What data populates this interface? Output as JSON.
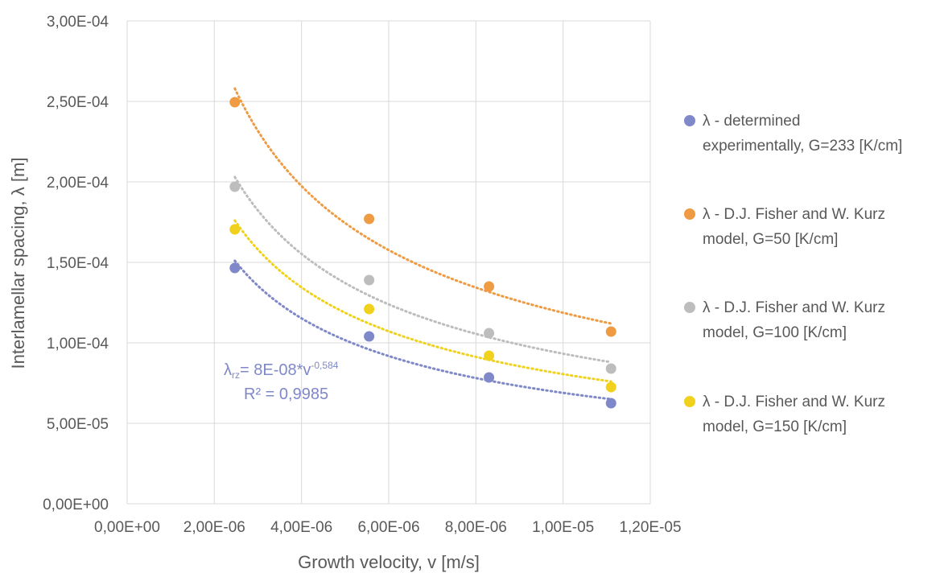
{
  "chart_data": {
    "type": "scatter",
    "xlabel": "Growth velocity, v [m/s]",
    "ylabel": "Interlamellar spacing, λ [m]",
    "xlim": [
      0,
      1.2e-05
    ],
    "ylim": [
      0,
      0.0003
    ],
    "x_ticks": [
      "0,00E+00",
      "2,00E-06",
      "4,00E-06",
      "6,00E-06",
      "8,00E-06",
      "1,00E-05",
      "1,20E-05"
    ],
    "y_ticks": [
      "0,00E+00",
      "5,00E-05",
      "1,00E-04",
      "1,50E-04",
      "2,00E-04",
      "2,50E-04",
      "3,00E-04"
    ],
    "grid": "vertical and horizontal",
    "legend_position": "right",
    "x": [
      2.47e-06,
      5.55e-06,
      8.3e-06,
      1.11e-05
    ],
    "trendline_type": "power, dotted",
    "series": [
      {
        "name_lines": [
          "λ - determined",
          "experimentally, G=233 [K/cm]"
        ],
        "color": "#7F88C8",
        "values": [
          0.0001465,
          0.000104,
          7.85e-05,
          6.25e-05
        ],
        "trend": [
          0.000151,
          9.9e-05,
          7.9e-05,
          6.5e-05
        ]
      },
      {
        "name_lines": [
          "λ - D.J. Fisher and W. Kurz",
          "model, G=50 [K/cm]"
        ],
        "color": "#EE9B44",
        "values": [
          0.0002495,
          0.000177,
          0.000135,
          0.000107
        ],
        "trend": [
          0.000258,
          0.000169,
          0.000134,
          0.000112
        ]
      },
      {
        "name_lines": [
          "λ - D.J. Fisher and W. Kurz",
          "model, G=100 [K/cm]"
        ],
        "color": "#BDBDBD",
        "values": [
          0.000197,
          0.000139,
          0.000106,
          8.4e-05
        ],
        "trend": [
          0.000203,
          0.000133,
          0.000105,
          8.8e-05
        ]
      },
      {
        "name_lines": [
          "λ - D.J. Fisher and W. Kurz",
          "model, G=150 [K/cm]"
        ],
        "color": "#F0D21E",
        "values": [
          0.0001705,
          0.000121,
          9.2e-05,
          7.25e-05
        ],
        "trend": [
          0.000176,
          0.000116,
          9.2e-05,
          7.6e-05
        ]
      }
    ],
    "annotation": {
      "equation_base": "λ",
      "equation_sub": "rz",
      "equation_mid": "= 8E-08*v",
      "equation_sup": "-0,584",
      "r2": "R² = 0,9985",
      "color": "#7F88C8"
    }
  }
}
